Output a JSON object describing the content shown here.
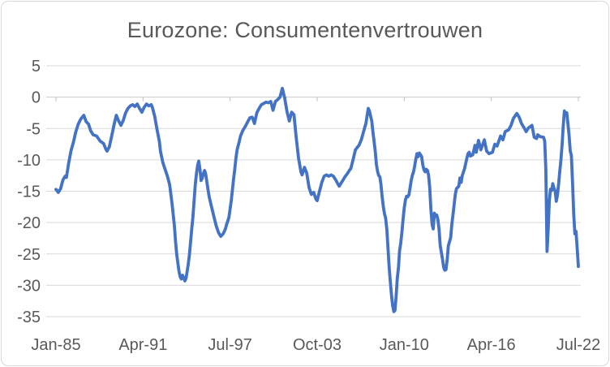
{
  "chart_title": "Eurozone: Consumentenvertrouwen",
  "colors": {
    "series_line": "#4472C4",
    "gridline": "#D9D9D9",
    "axis_text": "#595959",
    "chart_border": "#D9D9D9",
    "background": "#FFFFFF"
  },
  "chart_data": {
    "type": "line",
    "title": "Eurozone: Consumentenvertrouwen",
    "xlabel": "",
    "ylabel": "",
    "legend_position": "none",
    "grid": "horizontal",
    "ylim": [
      -35,
      5
    ],
    "y_ticks": [
      5,
      0,
      -5,
      -10,
      -15,
      -20,
      -25,
      -30,
      -35
    ],
    "x_unit": "months since Jan-1985",
    "x_tick_months": [
      0,
      75,
      150,
      225,
      300,
      375,
      450
    ],
    "x_tick_labels": [
      "Jan-85",
      "Apr-91",
      "Jul-97",
      "Oct-03",
      "Jan-10",
      "Apr-16",
      "Jul-22"
    ],
    "series": [
      {
        "name": "Consumentenvertrouwen",
        "color": "#4472C4",
        "points": [
          [
            0,
            -14.7
          ],
          [
            2,
            -15.2
          ],
          [
            4,
            -14.6
          ],
          [
            6,
            -13.2
          ],
          [
            8,
            -12.6
          ],
          [
            9,
            -12.8
          ],
          [
            11,
            -10.5
          ],
          [
            13,
            -8.5
          ],
          [
            15,
            -7.2
          ],
          [
            17,
            -5.6
          ],
          [
            19,
            -4.4
          ],
          [
            21,
            -3.6
          ],
          [
            23,
            -3.1
          ],
          [
            24,
            -2.9
          ],
          [
            26,
            -3.9
          ],
          [
            28,
            -4.3
          ],
          [
            30,
            -5.4
          ],
          [
            32,
            -6.0
          ],
          [
            35,
            -6.2
          ],
          [
            38,
            -7.0
          ],
          [
            41,
            -7.4
          ],
          [
            43,
            -8.3
          ],
          [
            44,
            -8.6
          ],
          [
            46,
            -7.9
          ],
          [
            48,
            -6.2
          ],
          [
            50,
            -4.4
          ],
          [
            52,
            -2.9
          ],
          [
            54,
            -3.8
          ],
          [
            56,
            -4.5
          ],
          [
            58,
            -3.7
          ],
          [
            60,
            -2.5
          ],
          [
            62,
            -1.8
          ],
          [
            64,
            -1.4
          ],
          [
            66,
            -1.2
          ],
          [
            68,
            -1.5
          ],
          [
            70,
            -1.1
          ],
          [
            72,
            -1.8
          ],
          [
            74,
            -2.4
          ],
          [
            76,
            -1.6
          ],
          [
            78,
            -1.1
          ],
          [
            80,
            -1.4
          ],
          [
            82,
            -1.2
          ],
          [
            83,
            -1.6
          ],
          [
            85,
            -3.0
          ],
          [
            87,
            -5.1
          ],
          [
            89,
            -7.0
          ],
          [
            90,
            -8.6
          ],
          [
            92,
            -10.4
          ],
          [
            94,
            -11.5
          ],
          [
            96,
            -12.6
          ],
          [
            97,
            -13.3
          ],
          [
            98,
            -14.0
          ],
          [
            100,
            -17.0
          ],
          [
            102,
            -20.5
          ],
          [
            103,
            -23.0
          ],
          [
            104,
            -25.0
          ],
          [
            105,
            -26.5
          ],
          [
            106,
            -27.8
          ],
          [
            107,
            -28.6
          ],
          [
            108,
            -29.0
          ],
          [
            109,
            -28.4
          ],
          [
            110,
            -28.8
          ],
          [
            111,
            -29.3
          ],
          [
            112,
            -28.9
          ],
          [
            113,
            -27.8
          ],
          [
            114,
            -26.6
          ],
          [
            115,
            -25.0
          ],
          [
            116,
            -23.0
          ],
          [
            117,
            -21.0
          ],
          [
            118,
            -19.0
          ],
          [
            119,
            -16.5
          ],
          [
            120,
            -14.0
          ],
          [
            121,
            -12.2
          ],
          [
            122,
            -10.9
          ],
          [
            123,
            -10.2
          ],
          [
            124,
            -11.5
          ],
          [
            125,
            -13.3
          ],
          [
            126,
            -12.9
          ],
          [
            127,
            -12.2
          ],
          [
            128,
            -11.7
          ],
          [
            129,
            -12.3
          ],
          [
            130,
            -13.5
          ],
          [
            131,
            -14.8
          ],
          [
            132,
            -15.9
          ],
          [
            134,
            -17.5
          ],
          [
            136,
            -19.0
          ],
          [
            138,
            -20.5
          ],
          [
            140,
            -21.6
          ],
          [
            142,
            -22.2
          ],
          [
            144,
            -21.8
          ],
          [
            146,
            -21.0
          ],
          [
            147,
            -20.3
          ],
          [
            149,
            -19.2
          ],
          [
            150,
            -17.8
          ],
          [
            151,
            -16.5
          ],
          [
            152,
            -14.8
          ],
          [
            153,
            -13.0
          ],
          [
            154,
            -11.5
          ],
          [
            155,
            -9.8
          ],
          [
            156,
            -8.4
          ],
          [
            157,
            -7.7
          ],
          [
            158,
            -7.0
          ],
          [
            159,
            -6.2
          ],
          [
            161,
            -5.3
          ],
          [
            163,
            -4.7
          ],
          [
            165,
            -4.0
          ],
          [
            167,
            -3.3
          ],
          [
            169,
            -3.2
          ],
          [
            171,
            -4.2
          ],
          [
            173,
            -2.5
          ],
          [
            175,
            -1.8
          ],
          [
            177,
            -1.2
          ],
          [
            179,
            -1.0
          ],
          [
            181,
            -0.8
          ],
          [
            183,
            -0.9
          ],
          [
            185,
            -0.7
          ],
          [
            187,
            -2.1
          ],
          [
            189,
            -0.7
          ],
          [
            191,
            -0.4
          ],
          [
            193,
            0.0
          ],
          [
            195,
            1.4
          ],
          [
            196,
            0.6
          ],
          [
            197,
            -0.1
          ],
          [
            199,
            -2.3
          ],
          [
            201,
            -3.8
          ],
          [
            203,
            -2.4
          ],
          [
            205,
            -2.8
          ],
          [
            207,
            -6.5
          ],
          [
            209,
            -9.8
          ],
          [
            211,
            -11.9
          ],
          [
            212,
            -12.4
          ],
          [
            214,
            -11.2
          ],
          [
            216,
            -12.1
          ],
          [
            218,
            -14.4
          ],
          [
            220,
            -15.5
          ],
          [
            222,
            -15.2
          ],
          [
            224,
            -16.3
          ],
          [
            225,
            -16.5
          ],
          [
            227,
            -15.0
          ],
          [
            229,
            -13.6
          ],
          [
            231,
            -12.6
          ],
          [
            233,
            -12.4
          ],
          [
            235,
            -12.6
          ],
          [
            237,
            -12.4
          ],
          [
            239,
            -12.6
          ],
          [
            241,
            -13.2
          ],
          [
            243,
            -13.9
          ],
          [
            244,
            -14.2
          ],
          [
            245,
            -13.9
          ],
          [
            247,
            -13.3
          ],
          [
            249,
            -12.7
          ],
          [
            251,
            -12.2
          ],
          [
            253,
            -11.6
          ],
          [
            254,
            -11.4
          ],
          [
            256,
            -9.9
          ],
          [
            258,
            -8.4
          ],
          [
            260,
            -7.9
          ],
          [
            261,
            -7.7
          ],
          [
            263,
            -6.8
          ],
          [
            265,
            -5.5
          ],
          [
            266,
            -4.8
          ],
          [
            267,
            -4.2
          ],
          [
            268,
            -3.0
          ],
          [
            269,
            -1.8
          ],
          [
            270,
            -2.2
          ],
          [
            271,
            -3.0
          ],
          [
            272,
            -3.8
          ],
          [
            273,
            -5.5
          ],
          [
            274,
            -7.0
          ],
          [
            275,
            -8.6
          ],
          [
            276,
            -10.7
          ],
          [
            277,
            -11.8
          ],
          [
            278,
            -12.5
          ],
          [
            279,
            -12.7
          ],
          [
            280,
            -14.0
          ],
          [
            281,
            -15.9
          ],
          [
            282,
            -17.5
          ],
          [
            283,
            -18.6
          ],
          [
            284,
            -19.3
          ],
          [
            285,
            -21.1
          ],
          [
            286,
            -24.0
          ],
          [
            287,
            -27.0
          ],
          [
            288,
            -29.5
          ],
          [
            289,
            -31.5
          ],
          [
            290,
            -33.2
          ],
          [
            291,
            -34.2
          ],
          [
            292,
            -34.0
          ],
          [
            293,
            -31.8
          ],
          [
            294,
            -29.0
          ],
          [
            295,
            -27.2
          ],
          [
            296,
            -24.5
          ],
          [
            297,
            -23.3
          ],
          [
            298,
            -21.5
          ],
          [
            299,
            -19.5
          ],
          [
            300,
            -17.7
          ],
          [
            301,
            -16.4
          ],
          [
            302,
            -15.8
          ],
          [
            303,
            -15.9
          ],
          [
            304,
            -15.6
          ],
          [
            305,
            -14.5
          ],
          [
            306,
            -13.3
          ],
          [
            307,
            -12.5
          ],
          [
            308,
            -11.9
          ],
          [
            309,
            -11.0
          ],
          [
            310,
            -9.9
          ],
          [
            311,
            -9.0
          ],
          [
            312,
            -9.5
          ],
          [
            313,
            -8.9
          ],
          [
            314,
            -9.2
          ],
          [
            315,
            -9.5
          ],
          [
            316,
            -10.8
          ],
          [
            317,
            -11.6
          ],
          [
            318,
            -11.9
          ],
          [
            319,
            -11.5
          ],
          [
            320,
            -11.7
          ],
          [
            321,
            -12.5
          ],
          [
            322,
            -14.5
          ],
          [
            323,
            -17.9
          ],
          [
            324,
            -20.3
          ],
          [
            325,
            -21.0
          ],
          [
            326,
            -18.5
          ],
          [
            327,
            -19.0
          ],
          [
            328,
            -18.8
          ],
          [
            329,
            -19.5
          ],
          [
            330,
            -21.1
          ],
          [
            331,
            -23.7
          ],
          [
            333,
            -25.9
          ],
          [
            334,
            -27.2
          ],
          [
            335,
            -27.6
          ],
          [
            336,
            -27.5
          ],
          [
            337,
            -25.9
          ],
          [
            338,
            -23.7
          ],
          [
            340,
            -22.4
          ],
          [
            341,
            -20.3
          ],
          [
            342,
            -18.8
          ],
          [
            343,
            -17.1
          ],
          [
            344,
            -15.5
          ],
          [
            345,
            -14.6
          ],
          [
            347,
            -14.2
          ],
          [
            348,
            -12.9
          ],
          [
            349,
            -13.6
          ],
          [
            350,
            -12.5
          ],
          [
            352,
            -11.4
          ],
          [
            354,
            -9.7
          ],
          [
            355,
            -9.0
          ],
          [
            356,
            -8.8
          ],
          [
            357,
            -9.4
          ],
          [
            359,
            -9.2
          ],
          [
            361,
            -7.7
          ],
          [
            362,
            -8.8
          ],
          [
            364,
            -6.9
          ],
          [
            366,
            -8.4
          ],
          [
            369,
            -6.8
          ],
          [
            371,
            -8.6
          ],
          [
            373,
            -9.0
          ],
          [
            376,
            -8.8
          ],
          [
            378,
            -7.5
          ],
          [
            380,
            -7.8
          ],
          [
            383,
            -6.2
          ],
          [
            385,
            -6.8
          ],
          [
            387,
            -5.5
          ],
          [
            390,
            -5.2
          ],
          [
            392,
            -4.5
          ],
          [
            394,
            -3.4
          ],
          [
            397,
            -2.6
          ],
          [
            399,
            -3.2
          ],
          [
            401,
            -4.2
          ],
          [
            403,
            -4.8
          ],
          [
            405,
            -5.5
          ],
          [
            407,
            -4.9
          ],
          [
            410,
            -4.5
          ],
          [
            412,
            -6.4
          ],
          [
            414,
            -6.6
          ],
          [
            415,
            -6.0
          ],
          [
            417,
            -6.3
          ],
          [
            420,
            -6.4
          ],
          [
            421,
            -7.0
          ],
          [
            422,
            -11.5
          ],
          [
            423,
            -24.6
          ],
          [
            424,
            -21.0
          ],
          [
            425,
            -16.5
          ],
          [
            426,
            -14.7
          ],
          [
            427,
            -14.9
          ],
          [
            428,
            -13.8
          ],
          [
            429,
            -14.5
          ],
          [
            430,
            -15.0
          ],
          [
            431,
            -16.6
          ],
          [
            432,
            -15.6
          ],
          [
            433,
            -13.8
          ],
          [
            434,
            -11.8
          ],
          [
            435,
            -10.0
          ],
          [
            436,
            -7.5
          ],
          [
            437,
            -4.5
          ],
          [
            438,
            -2.2
          ],
          [
            439,
            -2.8
          ],
          [
            440,
            -2.5
          ],
          [
            441,
            -4.2
          ],
          [
            442,
            -6.0
          ],
          [
            443,
            -8.6
          ],
          [
            444,
            -9.3
          ],
          [
            445,
            -13.5
          ],
          [
            446,
            -18.7
          ],
          [
            447,
            -21.8
          ],
          [
            448,
            -21.4
          ],
          [
            449,
            -24.2
          ],
          [
            450,
            -27.0
          ]
        ]
      }
    ]
  }
}
